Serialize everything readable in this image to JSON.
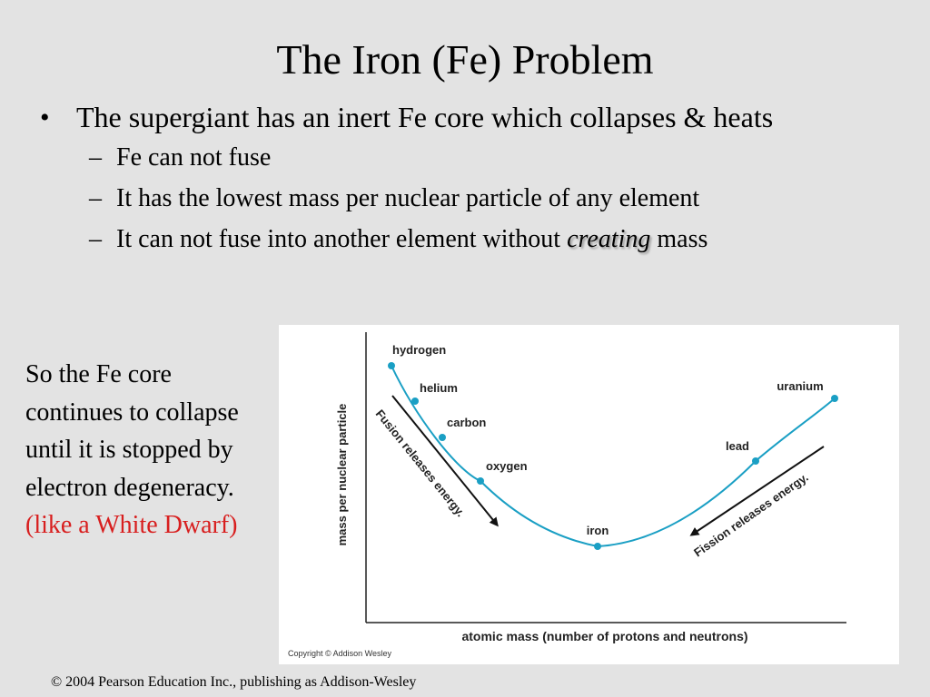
{
  "slide": {
    "title": "The Iron (Fe) Problem",
    "bullet_main": "The supergiant has an inert Fe core which collapses & heats",
    "sub_bullets": {
      "fuse": "Fe can not fuse",
      "lowest": "It has the lowest mass per nuclear particle of any element",
      "create_before": "It can not fuse into another element without ",
      "create_emph": "creating",
      "create_after": " mass"
    },
    "side_text": "So the Fe core continues to collapse until it is stopped by electron degeneracy.",
    "side_text_red": "(like a White Dwarf)",
    "footer": "© 2004 Pearson Education Inc., publishing as Addison-Wesley"
  },
  "figure": {
    "copyright": "Copyright © Addison Wesley",
    "fusion_label": "Fusion releases energy.",
    "fission_label": "Fission releases energy.",
    "accent_color": "#1a9fc4"
  },
  "chart_data": {
    "type": "line",
    "title": "",
    "xlabel": "atomic mass (number of protons and neutrons)",
    "ylabel": "mass per nuclear particle",
    "x_ticks": "none",
    "y_ticks": "none",
    "grid": false,
    "series": [
      {
        "points": [
          {
            "label": "hydrogen"
          },
          {
            "label": "helium"
          },
          {
            "label": "carbon"
          },
          {
            "label": "oxygen"
          },
          {
            "label": "iron"
          },
          {
            "label": "lead"
          },
          {
            "label": "uranium"
          }
        ]
      }
    ],
    "annotations": [
      "Fusion releases energy.",
      "Fission releases energy."
    ]
  }
}
